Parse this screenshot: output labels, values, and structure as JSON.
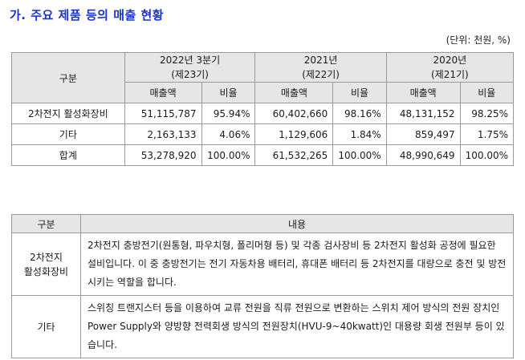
{
  "title": "가. 주요 제품 등의 매출 현황",
  "unit_note": "(단위: 천원, %)",
  "sales_table": {
    "header_label": "구분",
    "periods": [
      {
        "line1": "2022년 3분기",
        "line2": "(제23기)"
      },
      {
        "line1": "2021년",
        "line2": "(제22기)"
      },
      {
        "line1": "2020년",
        "line2": "(제21기)"
      }
    ],
    "sub_headers": {
      "sales": "매출액",
      "ratio": "비율"
    },
    "rows": [
      {
        "label": "2차전지 활성화장비",
        "cells": [
          "51,115,787",
          "95.94%",
          "60,402,660",
          "98.16%",
          "48,131,152",
          "98.25%"
        ]
      },
      {
        "label": "기타",
        "cells": [
          "2,163,133",
          "4.06%",
          "1,129,606",
          "1.84%",
          "859,497",
          "1.75%"
        ]
      },
      {
        "label": "합계",
        "cells": [
          "53,278,920",
          "100.00%",
          "61,532,265",
          "100.00%",
          "48,990,649",
          "100.00%"
        ]
      }
    ]
  },
  "content_table": {
    "headers": {
      "category": "구분",
      "content": "내용"
    },
    "rows": [
      {
        "label_lines": [
          "2차전지",
          "활성화장비"
        ],
        "text": "2차전지 충방전기(원통형, 파우치형, 폴리머형 등) 및 각종 검사장비 등 2차전지 활성화 공정에 필요한 설비입니다. 이 중 충방전기는 전기 자동차용 배터리, 휴대폰 배터리 등 2차전지를 대량으로 충전 및 방전 시키는 역할을 합니다."
      },
      {
        "label_lines": [
          "기타"
        ],
        "text": "스위칭 트랜지스터 등을 이용하여 교류 전원을 직류 전원으로 변환하는 스위치 제어 방식의 전원 장치인 Power Supply와 양방향 전력회생 방식의 전원장치(HVU-9~40kwatt)인 대용량 회생 전원부 등이 있습니다."
      }
    ]
  }
}
